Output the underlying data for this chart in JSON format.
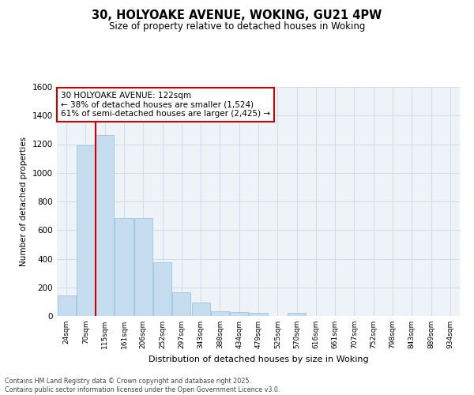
{
  "title": "30, HOLYOAKE AVENUE, WOKING, GU21 4PW",
  "subtitle": "Size of property relative to detached houses in Woking",
  "xlabel": "Distribution of detached houses by size in Woking",
  "ylabel": "Number of detached properties",
  "categories": [
    "24sqm",
    "70sqm",
    "115sqm",
    "161sqm",
    "206sqm",
    "252sqm",
    "297sqm",
    "343sqm",
    "388sqm",
    "434sqm",
    "479sqm",
    "525sqm",
    "570sqm",
    "616sqm",
    "661sqm",
    "707sqm",
    "752sqm",
    "798sqm",
    "843sqm",
    "889sqm",
    "934sqm"
  ],
  "values": [
    145,
    1190,
    1265,
    685,
    685,
    375,
    165,
    95,
    35,
    25,
    20,
    0,
    20,
    0,
    0,
    0,
    0,
    0,
    0,
    0,
    0
  ],
  "bar_color": "#c5ddef",
  "bar_edge_color": "#a0c4e0",
  "vline_x": 2,
  "vline_color": "#cc0000",
  "annotation_title": "30 HOLYOAKE AVENUE: 122sqm",
  "annotation_line1": "← 38% of detached houses are smaller (1,524)",
  "annotation_line2": "61% of semi-detached houses are larger (2,425) →",
  "annotation_box_color": "#cc0000",
  "ylim": [
    0,
    1600
  ],
  "yticks": [
    0,
    200,
    400,
    600,
    800,
    1000,
    1200,
    1400,
    1600
  ],
  "footer_line1": "Contains HM Land Registry data © Crown copyright and database right 2025.",
  "footer_line2": "Contains public sector information licensed under the Open Government Licence v3.0.",
  "plot_bg_color": "#eef3f8",
  "grid_color": "#d0dde8",
  "fig_bg_color": "#ffffff"
}
